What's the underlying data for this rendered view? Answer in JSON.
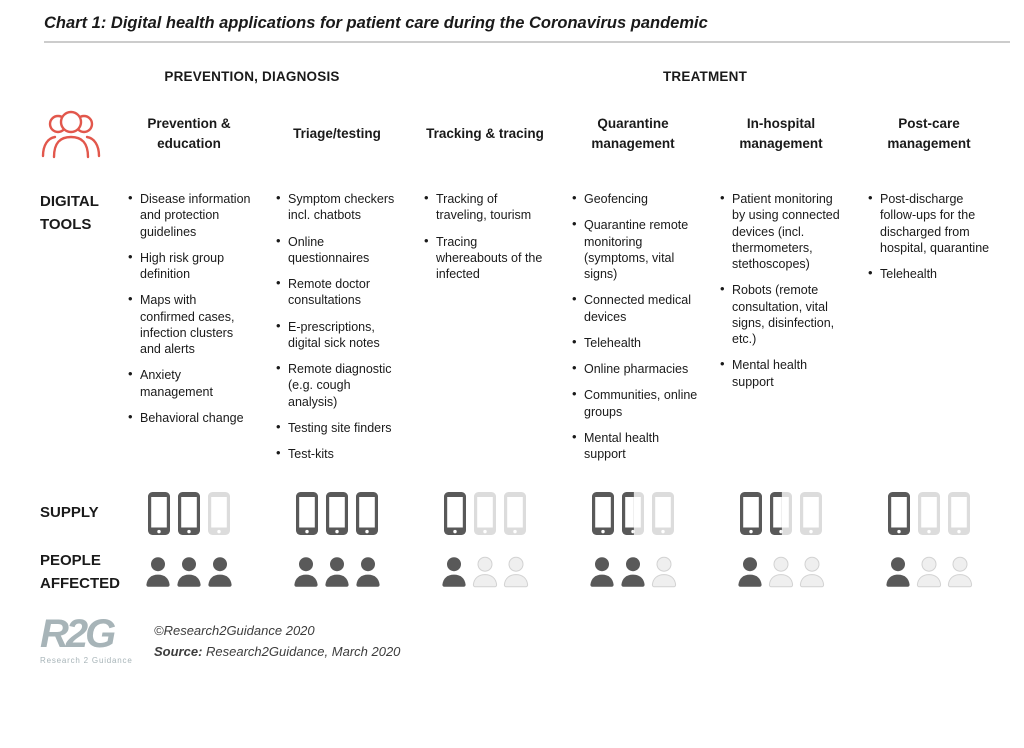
{
  "title": "Chart 1: Digital health applications for patient care during the Coronavirus pandemic",
  "sections": {
    "prevention": "PREVENTION, DIAGNOSIS",
    "treatment": "TREATMENT"
  },
  "row_labels": {
    "digital_tools": "DIGITAL TOOLS",
    "supply": "SUPPLY",
    "people_affected": "PEOPLE AFFECTED"
  },
  "colors": {
    "accent_red": "#e2574c",
    "icon_dark": "#595959",
    "icon_light": "#dcdcdc",
    "icon_light_fill": "#efefef",
    "icon_light_stroke": "#d2d2d2",
    "logo": "#a7b4b8"
  },
  "icons": {
    "group_icon": "people-group-icon",
    "phone_icon": "smartphone-icon",
    "person_icon": "person-icon"
  },
  "columns": [
    {
      "header": "Prevention & education",
      "tools": [
        "Disease information and protection guidelines",
        "High risk group definition",
        "Maps with confirmed cases, infection clusters and alerts",
        "Anxiety management",
        "Behavioral change"
      ],
      "supply": [
        "dark",
        "dark",
        "light"
      ],
      "people": [
        "dark",
        "dark",
        "dark"
      ]
    },
    {
      "header": "Triage/testing",
      "tools": [
        "Symptom checkers incl. chatbots",
        "Online questionnaires",
        "Remote doctor consultations",
        "E-prescriptions, digital sick notes",
        "Remote diagnostic (e.g. cough analysis)",
        "Testing site finders",
        "Test-kits"
      ],
      "supply": [
        "dark",
        "dark",
        "dark"
      ],
      "people": [
        "dark",
        "dark",
        "dark"
      ]
    },
    {
      "header": "Tracking & tracing",
      "tools": [
        "Tracking of traveling, tourism",
        "Tracing whereabouts of the infected"
      ],
      "supply": [
        "dark",
        "light",
        "light"
      ],
      "people": [
        "dark",
        "light",
        "light"
      ]
    },
    {
      "header": "Quarantine management",
      "tools": [
        "Geofencing",
        "Quarantine remote monitoring (symptoms, vital signs)",
        "Connected medical devices",
        "Telehealth",
        "Online pharmacies",
        "Communities, online groups",
        "Mental health support"
      ],
      "supply": [
        "dark",
        "half",
        "light"
      ],
      "people": [
        "dark",
        "dark",
        "light"
      ]
    },
    {
      "header": "In-hospital management",
      "tools": [
        "Patient monitoring by using connected devices (incl. thermometers, stethoscopes)",
        "Robots (remote consultation, vital signs, disinfection, etc.)",
        "Mental health support"
      ],
      "supply": [
        "dark",
        "half",
        "light"
      ],
      "people": [
        "dark",
        "light",
        "light"
      ]
    },
    {
      "header": "Post-care management",
      "tools": [
        "Post-discharge follow-ups for the discharged from hospital, quarantine",
        "Telehealth"
      ],
      "supply": [
        "dark",
        "light",
        "light"
      ],
      "people": [
        "dark",
        "light",
        "light"
      ]
    }
  ],
  "footer": {
    "logo_text": "R2G",
    "logo_subtext": "Research 2 Guidance",
    "copyright": "©Research2Guidance 2020",
    "source_label": "Source:",
    "source_text": " Research2Guidance, March 2020"
  }
}
